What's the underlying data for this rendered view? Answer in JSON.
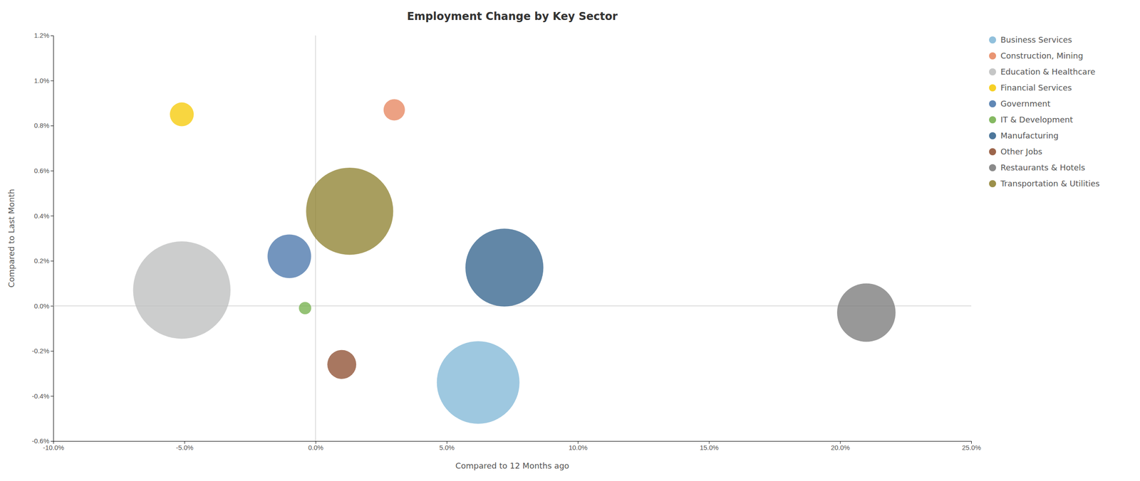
{
  "chart_data": {
    "type": "bubble",
    "title": "Employment Change by Key Sector",
    "x_label": "Compared to 12 Months ago",
    "y_label": "Compared to Last Month",
    "xlim": [
      -0.1,
      0.25
    ],
    "ylim": [
      -0.006,
      0.012
    ],
    "xticks": [
      {
        "value": -0.1,
        "label": "-10.0%"
      },
      {
        "value": -0.05,
        "label": "-5.0%"
      },
      {
        "value": 0.0,
        "label": "0.0%"
      },
      {
        "value": 0.05,
        "label": "5.0%"
      },
      {
        "value": 0.1,
        "label": "10.0%"
      },
      {
        "value": 0.15,
        "label": "15.0%"
      },
      {
        "value": 0.2,
        "label": "20.0%"
      },
      {
        "value": 0.25,
        "label": "25.0%"
      }
    ],
    "yticks": [
      {
        "value": -0.006,
        "label": "-0.6%"
      },
      {
        "value": -0.004,
        "label": "-0.4%"
      },
      {
        "value": -0.002,
        "label": "-0.2%"
      },
      {
        "value": 0.0,
        "label": "0.0%"
      },
      {
        "value": 0.002,
        "label": "0.2%"
      },
      {
        "value": 0.004,
        "label": "0.4%"
      },
      {
        "value": 0.006,
        "label": "0.6%"
      },
      {
        "value": 0.008,
        "label": "0.8%"
      },
      {
        "value": 0.01,
        "label": "1.0%"
      },
      {
        "value": 0.012,
        "label": "1.2%"
      }
    ],
    "grid": false,
    "legend": "right",
    "series": [
      {
        "name": "Business Services",
        "x": 0.062,
        "y": -0.0034,
        "size": 18000,
        "color": "#7eb5d6"
      },
      {
        "name": "Construction, Mining",
        "x": 0.03,
        "y": 0.0087,
        "size": 1200,
        "color": "#e5825a"
      },
      {
        "name": "Education & Healthcare",
        "x": -0.051,
        "y": 0.0007,
        "size": 25000,
        "color": "#bbbcbc"
      },
      {
        "name": "Financial Services",
        "x": -0.051,
        "y": 0.0085,
        "size": 1500,
        "color": "#f5c800"
      },
      {
        "name": "Government",
        "x": -0.01,
        "y": 0.0022,
        "size": 5000,
        "color": "#4472a8"
      },
      {
        "name": "IT & Development",
        "x": -0.004,
        "y": -0.0001,
        "size": 400,
        "color": "#70ad47"
      },
      {
        "name": "Manufacturing",
        "x": 0.072,
        "y": 0.0017,
        "size": 16000,
        "color": "#2e5f8a"
      },
      {
        "name": "Other Jobs",
        "x": 0.01,
        "y": -0.0026,
        "size": 2200,
        "color": "#8b4a2b"
      },
      {
        "name": "Restaurants & Hotels",
        "x": 0.21,
        "y": -0.0003,
        "size": 9000,
        "color": "#767676"
      },
      {
        "name": "Transportation & Utilities",
        "x": 0.013,
        "y": 0.0042,
        "size": 20000,
        "color": "#8b7d2a"
      }
    ]
  }
}
